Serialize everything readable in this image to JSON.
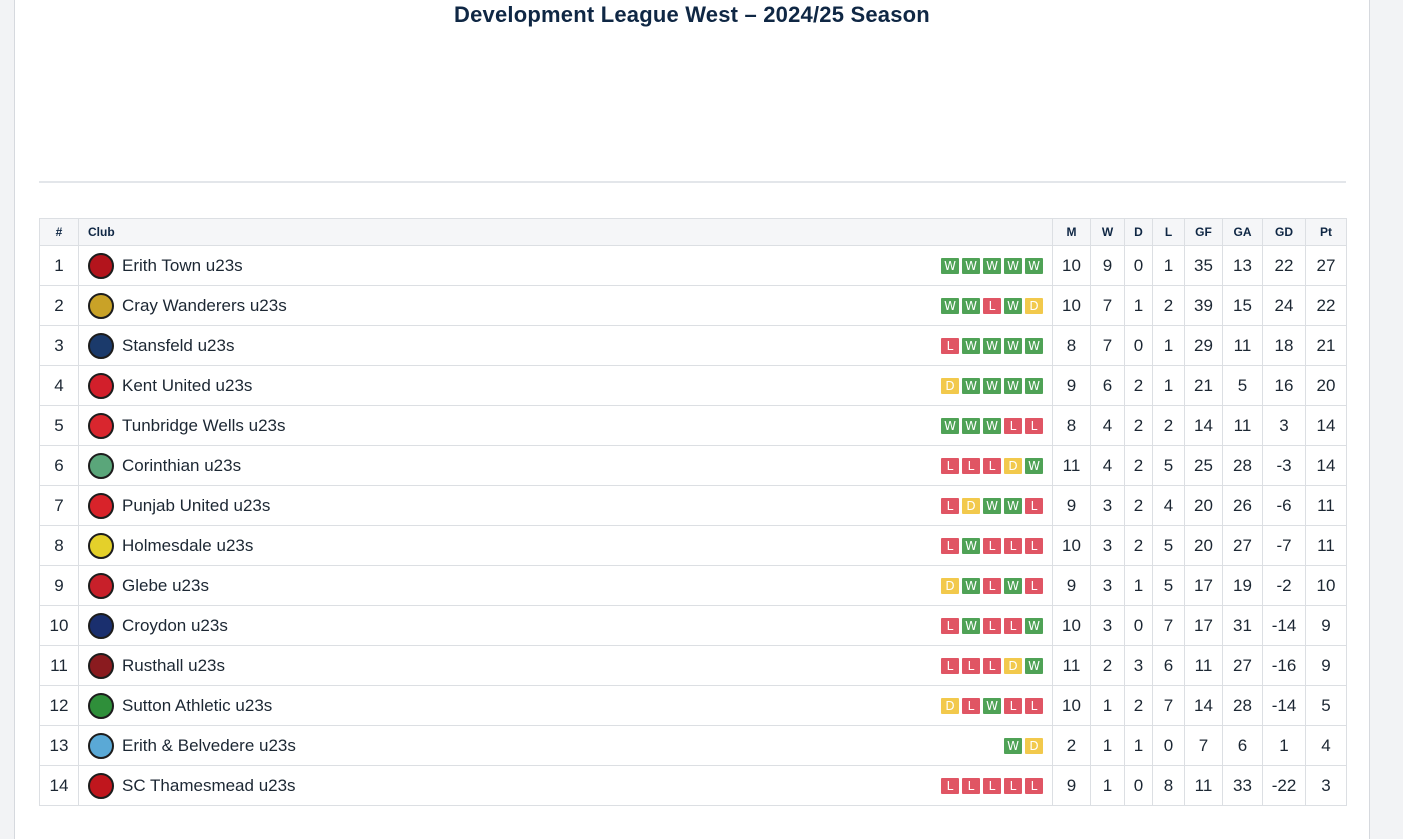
{
  "title": "Development League West – 2024/25 Season",
  "colors": {
    "win": "#4fa256",
    "draw": "#f2c94c",
    "loss": "#e05564"
  },
  "headers": [
    "#",
    "Club",
    "M",
    "W",
    "D",
    "L",
    "GF",
    "GA",
    "GD",
    "Pt"
  ],
  "rows": [
    {
      "pos": "1",
      "club": "Erith Town u23s",
      "crest": "erith-town-crest",
      "crest_color": "#b3141c",
      "form": [
        "W",
        "W",
        "W",
        "W",
        "W"
      ],
      "m": "10",
      "w": "9",
      "d": "0",
      "l": "1",
      "gf": "35",
      "ga": "13",
      "gd": "22",
      "pt": "27"
    },
    {
      "pos": "2",
      "club": "Cray Wanderers u23s",
      "crest": "cray-wanderers-crest",
      "crest_color": "#c9a227",
      "form": [
        "W",
        "W",
        "L",
        "W",
        "D"
      ],
      "m": "10",
      "w": "7",
      "d": "1",
      "l": "2",
      "gf": "39",
      "ga": "15",
      "gd": "24",
      "pt": "22"
    },
    {
      "pos": "3",
      "club": "Stansfeld u23s",
      "crest": "stansfeld-crest",
      "crest_color": "#1b3a6b",
      "form": [
        "L",
        "W",
        "W",
        "W",
        "W"
      ],
      "m": "8",
      "w": "7",
      "d": "0",
      "l": "1",
      "gf": "29",
      "ga": "11",
      "gd": "18",
      "pt": "21"
    },
    {
      "pos": "4",
      "club": "Kent United u23s",
      "crest": "kent-united-crest",
      "crest_color": "#d21f2b",
      "form": [
        "D",
        "W",
        "W",
        "W",
        "W"
      ],
      "m": "9",
      "w": "6",
      "d": "2",
      "l": "1",
      "gf": "21",
      "ga": "5",
      "gd": "16",
      "pt": "20"
    },
    {
      "pos": "5",
      "club": "Tunbridge Wells u23s",
      "crest": "tunbridge-wells-crest",
      "crest_color": "#d9262e",
      "form": [
        "W",
        "W",
        "W",
        "L",
        "L"
      ],
      "m": "8",
      "w": "4",
      "d": "2",
      "l": "2",
      "gf": "14",
      "ga": "11",
      "gd": "3",
      "pt": "14"
    },
    {
      "pos": "6",
      "club": "Corinthian u23s",
      "crest": "corinthian-crest",
      "crest_color": "#5aa67a",
      "form": [
        "L",
        "L",
        "L",
        "D",
        "W"
      ],
      "m": "11",
      "w": "4",
      "d": "2",
      "l": "5",
      "gf": "25",
      "ga": "28",
      "gd": "-3",
      "pt": "14"
    },
    {
      "pos": "7",
      "club": "Punjab United u23s",
      "crest": "punjab-united-crest",
      "crest_color": "#d8232a",
      "form": [
        "L",
        "D",
        "W",
        "W",
        "L"
      ],
      "m": "9",
      "w": "3",
      "d": "2",
      "l": "4",
      "gf": "20",
      "ga": "26",
      "gd": "-6",
      "pt": "11"
    },
    {
      "pos": "8",
      "club": "Holmesdale u23s",
      "crest": "holmesdale-crest",
      "crest_color": "#e4d02a",
      "form": [
        "L",
        "W",
        "L",
        "L",
        "L"
      ],
      "m": "10",
      "w": "3",
      "d": "2",
      "l": "5",
      "gf": "20",
      "ga": "27",
      "gd": "-7",
      "pt": "11"
    },
    {
      "pos": "9",
      "club": "Glebe u23s",
      "crest": "glebe-crest",
      "crest_color": "#c8202a",
      "form": [
        "D",
        "W",
        "L",
        "W",
        "L"
      ],
      "m": "9",
      "w": "3",
      "d": "1",
      "l": "5",
      "gf": "17",
      "ga": "19",
      "gd": "-2",
      "pt": "10"
    },
    {
      "pos": "10",
      "club": "Croydon u23s",
      "crest": "croydon-crest",
      "crest_color": "#1a2f6e",
      "form": [
        "L",
        "W",
        "L",
        "L",
        "W"
      ],
      "m": "10",
      "w": "3",
      "d": "0",
      "l": "7",
      "gf": "17",
      "ga": "31",
      "gd": "-14",
      "pt": "9"
    },
    {
      "pos": "11",
      "club": "Rusthall u23s",
      "crest": "rusthall-crest",
      "crest_color": "#8a1b1f",
      "form": [
        "L",
        "L",
        "L",
        "D",
        "W"
      ],
      "m": "11",
      "w": "2",
      "d": "3",
      "l": "6",
      "gf": "11",
      "ga": "27",
      "gd": "-16",
      "pt": "9"
    },
    {
      "pos": "12",
      "club": "Sutton Athletic u23s",
      "crest": "sutton-athletic-crest",
      "crest_color": "#2f8f3a",
      "form": [
        "D",
        "L",
        "W",
        "L",
        "L"
      ],
      "m": "10",
      "w": "1",
      "d": "2",
      "l": "7",
      "gf": "14",
      "ga": "28",
      "gd": "-14",
      "pt": "5"
    },
    {
      "pos": "13",
      "club": "Erith & Belvedere u23s",
      "crest": "erith-belvedere-crest",
      "crest_color": "#5aa9d6",
      "form": [
        "W",
        "D"
      ],
      "m": "2",
      "w": "1",
      "d": "1",
      "l": "0",
      "gf": "7",
      "ga": "6",
      "gd": "1",
      "pt": "4"
    },
    {
      "pos": "14",
      "club": "SC Thamesmead u23s",
      "crest": "sc-thamesmead-crest",
      "crest_color": "#c0161d",
      "form": [
        "L",
        "L",
        "L",
        "L",
        "L"
      ],
      "m": "9",
      "w": "1",
      "d": "0",
      "l": "8",
      "gf": "11",
      "ga": "33",
      "gd": "-22",
      "pt": "3"
    }
  ]
}
